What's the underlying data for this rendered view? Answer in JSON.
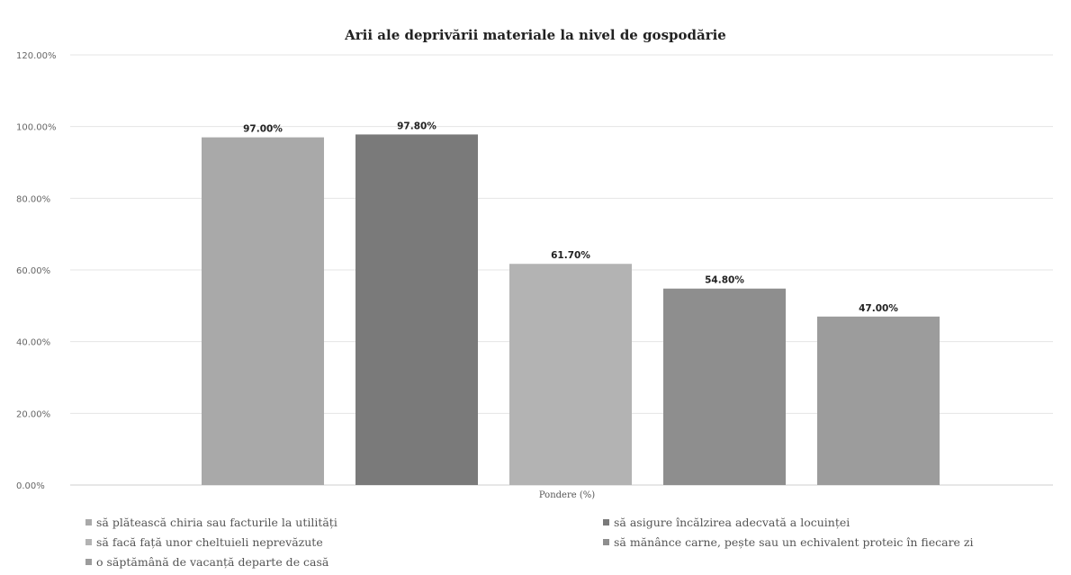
{
  "chart_data": {
    "type": "bar",
    "title": "Arii ale deprivării materiale la nivel de gospodărie",
    "xlabel": "Pondere (%)",
    "ylabel": "",
    "ylim": [
      0,
      120
    ],
    "y_ticks": [
      0,
      20,
      40,
      60,
      80,
      100,
      120
    ],
    "y_tick_labels": [
      "0.00%",
      "20.00%",
      "40.00%",
      "60.00%",
      "80.00%",
      "100.00%",
      "120.00%"
    ],
    "grid": true,
    "legend_position": "bottom",
    "series": [
      {
        "name": "să plătească chiria sau facturile la utilități",
        "value": 97.0,
        "label": "97.00%",
        "color": "#a9a9a9"
      },
      {
        "name": "să asigure încălzirea adecvată a locuinței",
        "value": 97.8,
        "label": "97.80%",
        "color": "#7a7a7a"
      },
      {
        "name": "să facă față unor cheltuieli neprevăzute",
        "value": 61.7,
        "label": "61.70%",
        "color": "#b3b3b3"
      },
      {
        "name": "să mănânce carne, pește sau un echivalent proteic în fiecare zi",
        "value": 54.8,
        "label": "54.80%",
        "color": "#8e8e8e"
      },
      {
        "name": "o săptămână de vacanță departe de casă",
        "value": 47.0,
        "label": "47.00%",
        "color": "#9c9c9c"
      }
    ]
  }
}
